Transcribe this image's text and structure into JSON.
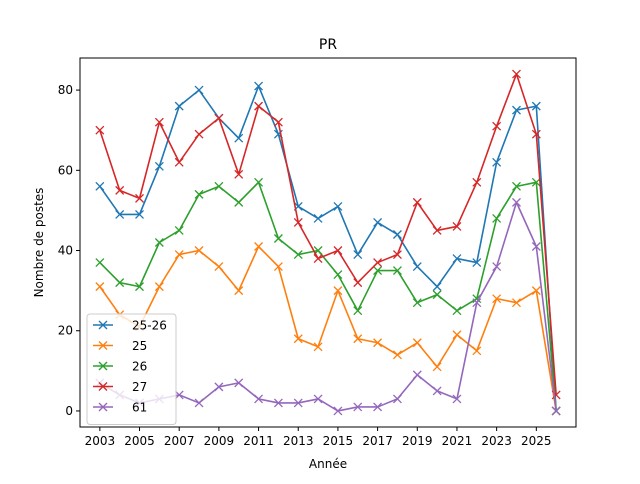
{
  "chart_data": {
    "type": "line",
    "title": "PR",
    "xlabel": "Année",
    "ylabel": "Nombre de postes",
    "xlim": [
      2002,
      2027
    ],
    "ylim": [
      -4,
      88
    ],
    "xticks": [
      2003,
      2005,
      2007,
      2009,
      2011,
      2013,
      2015,
      2017,
      2019,
      2021,
      2023,
      2025
    ],
    "yticks": [
      0,
      20,
      40,
      60,
      80
    ],
    "grid": false,
    "legend_position": "lower left",
    "marker": "x",
    "x": [
      2003,
      2004,
      2005,
      2006,
      2007,
      2008,
      2009,
      2010,
      2011,
      2012,
      2013,
      2014,
      2015,
      2016,
      2017,
      2018,
      2019,
      2020,
      2021,
      2022,
      2023,
      2024,
      2025,
      2026
    ],
    "series": [
      {
        "name": "25-26",
        "color": "#1f77b4",
        "values": [
          56,
          49,
          49,
          61,
          76,
          80,
          73,
          68,
          81,
          69,
          51,
          48,
          51,
          39,
          47,
          44,
          36,
          31,
          38,
          37,
          62,
          75,
          76,
          0
        ]
      },
      {
        "name": "25",
        "color": "#ff7f0e",
        "values": [
          31,
          24,
          21,
          31,
          39,
          40,
          36,
          30,
          41,
          36,
          18,
          16,
          30,
          18,
          17,
          14,
          17,
          11,
          19,
          15,
          28,
          27,
          30,
          0
        ]
      },
      {
        "name": "26",
        "color": "#2ca02c",
        "values": [
          37,
          32,
          31,
          42,
          45,
          54,
          56,
          52,
          57,
          43,
          39,
          40,
          34,
          25,
          35,
          35,
          27,
          29,
          25,
          28,
          48,
          56,
          57,
          0
        ]
      },
      {
        "name": "27",
        "color": "#d62728",
        "values": [
          70,
          55,
          53,
          72,
          62,
          69,
          73,
          59,
          76,
          72,
          47,
          38,
          40,
          32,
          37,
          39,
          52,
          45,
          46,
          57,
          71,
          84,
          69,
          4
        ]
      },
      {
        "name": "61",
        "color": "#9467bd",
        "values": [
          7,
          4,
          2,
          3,
          4,
          2,
          6,
          7,
          3,
          2,
          2,
          3,
          0,
          1,
          1,
          3,
          9,
          5,
          3,
          27,
          36,
          52,
          41,
          0
        ]
      }
    ]
  }
}
